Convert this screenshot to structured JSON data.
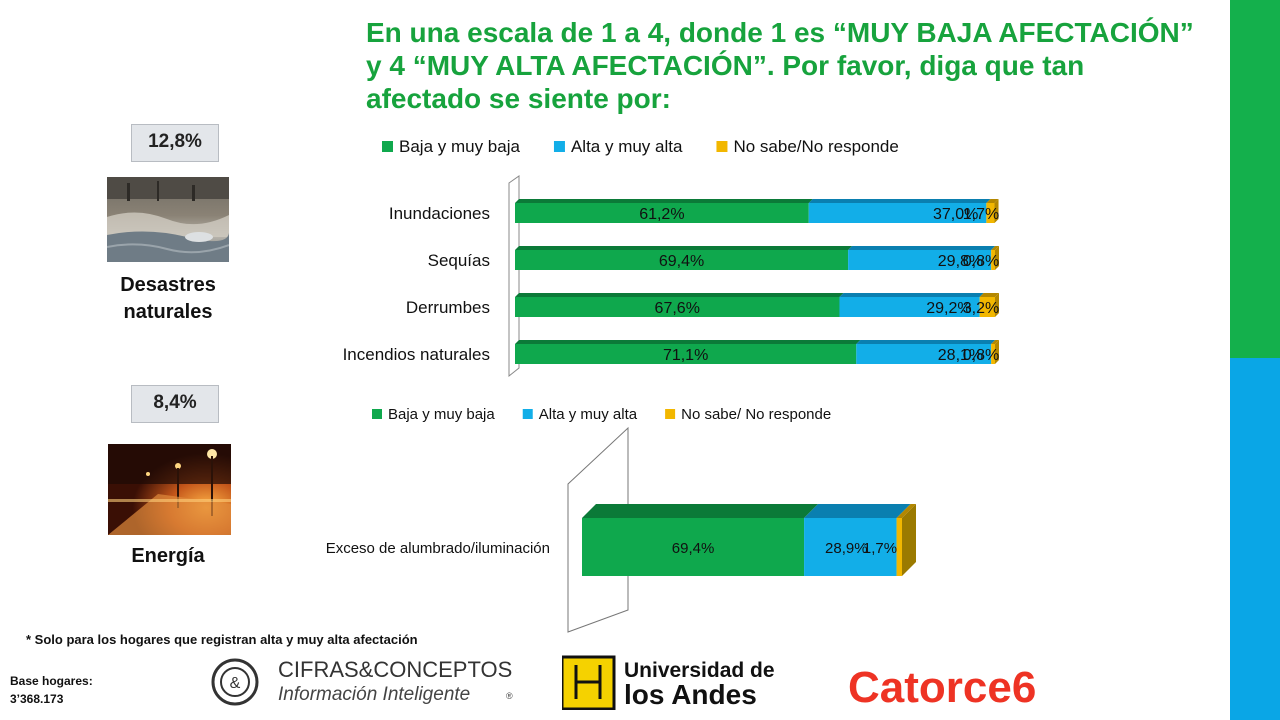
{
  "title": "En una escala de 1 a 4, donde 1 es “MUY BAJA AFECTACIÓN” y 4 “MUY ALTA AFECTACIÓN”. Por favor, diga que tan afectado se siente por:",
  "left_panel": {
    "desastres": {
      "badge": "12,8%",
      "label_line1": "Desastres",
      "label_line2": "naturales",
      "image": "flood-photo"
    },
    "energia": {
      "badge": "8,4%",
      "label": "Energía",
      "image": "night-street-photo"
    }
  },
  "colors": {
    "green": "#0fa84d",
    "blue": "#12aee8",
    "yellow": "#f2b700",
    "title_green": "#17a33d"
  },
  "chart_data": [
    {
      "type": "bar",
      "orientation": "horizontal",
      "stacked": true,
      "categories": [
        "Inundaciones",
        "Sequías",
        "Derrumbes",
        "Incendios naturales"
      ],
      "series": [
        {
          "name": "Baja y muy baja",
          "values": [
            61.2,
            69.4,
            67.6,
            71.1
          ],
          "labels": [
            "61,2%",
            "69,4%",
            "67,6%",
            "71,1%"
          ]
        },
        {
          "name": "Alta y muy alta",
          "values": [
            37.0,
            29.8,
            29.2,
            28.1
          ],
          "labels": [
            "37,0%",
            "29,8%",
            "29,2%",
            "28,1%"
          ]
        },
        {
          "name": "No sabe/No responde",
          "values": [
            1.7,
            0.8,
            3.2,
            0.8
          ],
          "labels": [
            "1,7%",
            "0,8%",
            "3,2%",
            "0,8%"
          ]
        }
      ],
      "xlim": [
        0,
        100
      ],
      "legend": "top"
    },
    {
      "type": "bar",
      "orientation": "horizontal",
      "stacked": true,
      "categories": [
        "Exceso de alumbrado/iluminación"
      ],
      "series": [
        {
          "name": "Baja y muy baja",
          "values": [
            69.4
          ],
          "labels": [
            "69,4%"
          ]
        },
        {
          "name": "Alta y muy alta",
          "values": [
            28.9
          ],
          "labels": [
            "28,9%"
          ]
        },
        {
          "name": "No sabe/ No responde",
          "values": [
            1.7
          ],
          "labels": [
            "1,7%"
          ]
        }
      ],
      "xlim": [
        0,
        100
      ],
      "legend": "top"
    }
  ],
  "footnote": "* Solo para los hogares que registran alta y muy alta afectación",
  "base": {
    "line1": "Base hogares:",
    "line2": "3’368.173"
  },
  "logos": {
    "cifras_line1": "CIFRAS&CONCEPTOS",
    "cifras_line2": "Información Inteligente",
    "cifras_mark": "&",
    "cifras_reg": "®",
    "uniandes_line1": "Universidad de",
    "uniandes_line2": "los Andes",
    "catorce": "Catorce6"
  }
}
